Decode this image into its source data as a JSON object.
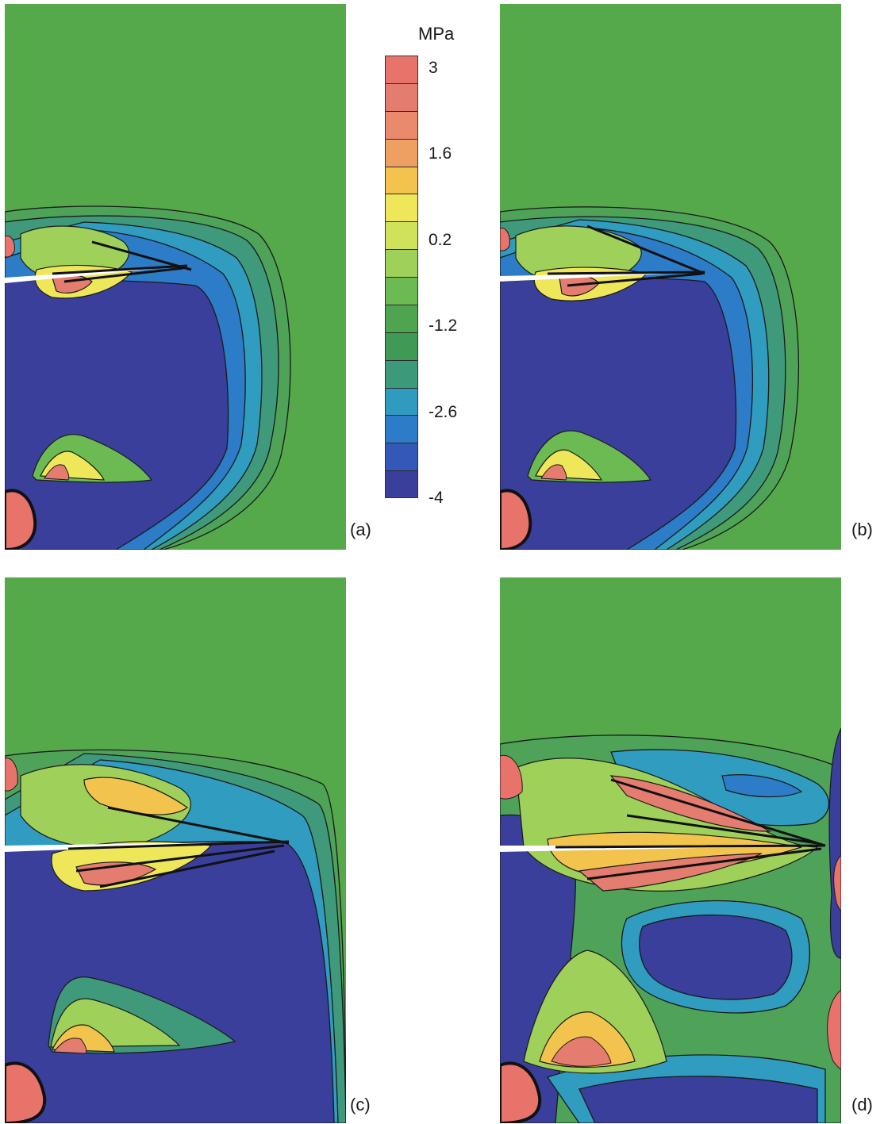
{
  "colorbar": {
    "unit": "MPa",
    "tick_labels": [
      "3",
      "1.6",
      "0.2",
      "-1.2",
      "-2.6",
      "-4"
    ],
    "tick_values": [
      3,
      1.6,
      0.2,
      -1.2,
      -2.6,
      -4
    ],
    "range": [
      -4,
      3.2
    ],
    "levels": 16,
    "colors": [
      "#e8736b",
      "#e47d70",
      "#ea8a6c",
      "#eea062",
      "#f2c44e",
      "#eee75a",
      "#cfe259",
      "#9fd05a",
      "#6cba52",
      "#4fa54f",
      "#3f9a55",
      "#3c9a7a",
      "#2f9cbf",
      "#2c7cc8",
      "#3358b8",
      "#3a3f9c"
    ]
  },
  "panels": [
    {
      "id": "a",
      "label": "(a)"
    },
    {
      "id": "b",
      "label": "(b)"
    },
    {
      "id": "c",
      "label": "(c)"
    },
    {
      "id": "d",
      "label": "(d)"
    }
  ],
  "colors": {
    "background_field": "#54a848",
    "compressive": "#3a3f9c",
    "tensile": "#e8736b",
    "contour_line": "#1a1a1a"
  }
}
